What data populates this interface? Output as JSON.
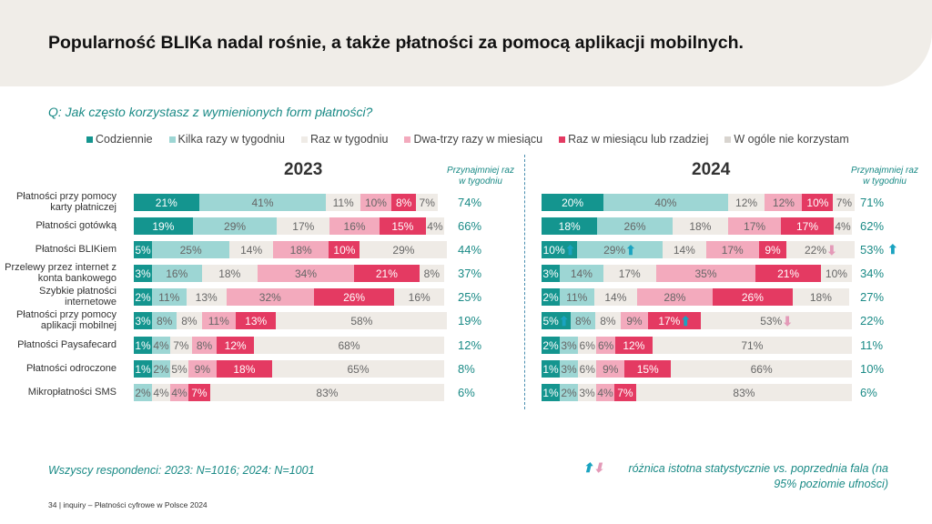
{
  "title": "Popularność BLIKa nadal rośnie, a także płatności za pomocą aplikacji mobilnych.",
  "question": "Q: Jak często korzystasz z wymienionych form płatności?",
  "colors": {
    "Codziennie": "#14958f",
    "Kilka razy w tygodniu": "#9dd6d4",
    "Raz w tygodniu": "#efebe6",
    "Dwa-trzy razy w miesiącu": "#f3aabd",
    "Raz w miesiącu lub rzadziej": "#e43a62",
    "W ogóle nie korzystam": "#efebe6",
    "up": "#1aa3c0",
    "down": "#e49ab8"
  },
  "weekly_header": "Przynajmniej raz w tygodniu",
  "footer": "Wszyscy respondenci: 2023: N=1016; 2024: N=1001",
  "note": "różnica istotna statystycznie vs. poprzednia fala (na 95% poziomie ufności)",
  "page": "34 | inquiry – Płatności cyfrowe w Polsce 2024",
  "chart_data": [
    {
      "type": "bar",
      "stacked": true,
      "orientation": "horizontal",
      "title": "2023",
      "categories": [
        "Płatności przy pomocy karty płatniczej",
        "Płatności gotówką",
        "Płatności BLIKiem",
        "Przelewy przez internet z konta bankowego",
        "Szybkie płatności internetowe",
        "Płatności przy pomocy aplikacji mobilnej",
        "Płatności Paysafecard",
        "Płatności odroczone",
        "Mikropłatności SMS"
      ],
      "series": [
        {
          "name": "Codziennie",
          "values": [
            21,
            19,
            5,
            3,
            2,
            3,
            1,
            1,
            0
          ]
        },
        {
          "name": "Kilka razy w tygodniu",
          "values": [
            41,
            29,
            25,
            16,
            11,
            8,
            4,
            2,
            2
          ]
        },
        {
          "name": "Raz w tygodniu",
          "values": [
            11,
            17,
            14,
            18,
            13,
            8,
            7,
            5,
            4
          ]
        },
        {
          "name": "Dwa-trzy razy w miesiącu",
          "values": [
            10,
            16,
            18,
            34,
            32,
            11,
            8,
            9,
            4
          ]
        },
        {
          "name": "Raz w miesiącu lub rzadziej",
          "values": [
            8,
            15,
            10,
            21,
            26,
            13,
            12,
            18,
            7
          ]
        },
        {
          "name": "W ogóle nie korzystam",
          "values": [
            7,
            4,
            29,
            8,
            16,
            58,
            68,
            65,
            83
          ]
        }
      ],
      "weekly": [
        "74%",
        "66%",
        "44%",
        "37%",
        "25%",
        "19%",
        "12%",
        "8%",
        "6%"
      ]
    },
    {
      "type": "bar",
      "stacked": true,
      "orientation": "horizontal",
      "title": "2024",
      "series": [
        {
          "name": "Codziennie",
          "values": [
            20,
            18,
            10,
            3,
            2,
            5,
            2,
            1,
            1
          ]
        },
        {
          "name": "Kilka razy w tygodniu",
          "values": [
            40,
            26,
            29,
            14,
            11,
            8,
            3,
            3,
            2
          ]
        },
        {
          "name": "Raz w tygodniu",
          "values": [
            12,
            18,
            14,
            17,
            14,
            8,
            6,
            6,
            3
          ]
        },
        {
          "name": "Dwa-trzy razy w miesiącu",
          "values": [
            12,
            17,
            17,
            35,
            28,
            9,
            6,
            9,
            4
          ]
        },
        {
          "name": "Raz w miesiącu lub rzadziej",
          "values": [
            10,
            17,
            9,
            21,
            26,
            17,
            12,
            15,
            7
          ]
        },
        {
          "name": "W ogóle nie korzystam",
          "values": [
            7,
            4,
            22,
            10,
            18,
            53,
            71,
            66,
            83
          ]
        }
      ],
      "weekly": [
        "71%",
        "62%",
        "53%",
        "34%",
        "27%",
        "22%",
        "11%",
        "10%",
        "6%"
      ],
      "significance": [
        {
          "row": 2,
          "series": 0,
          "dir": "up"
        },
        {
          "row": 2,
          "series": 1,
          "dir": "up"
        },
        {
          "row": 2,
          "series": 5,
          "dir": "down"
        },
        {
          "row": 2,
          "series": "weekly",
          "dir": "up"
        },
        {
          "row": 5,
          "series": 0,
          "dir": "up"
        },
        {
          "row": 5,
          "series": 4,
          "dir": "up"
        },
        {
          "row": 5,
          "series": 5,
          "dir": "down"
        }
      ]
    }
  ]
}
